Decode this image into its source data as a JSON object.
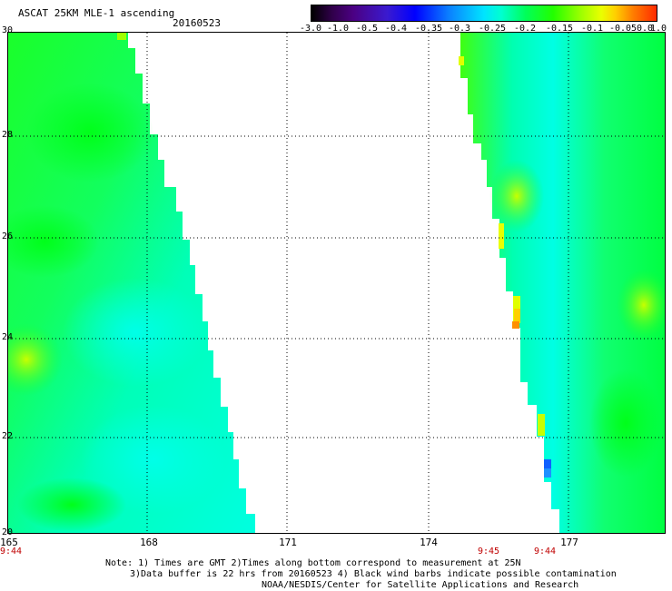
{
  "header": {
    "title": "ASCAT 25KM MLE-1 ascending",
    "date": "20160523"
  },
  "colorbar": {
    "labels": [
      "-3.0",
      "-1.0",
      "-0.5",
      "-0.4",
      "-0.35",
      "-0.3",
      "-0.25",
      "-0.2",
      "-0.15",
      "-0.1",
      "-0.05",
      "0.0",
      "1.0"
    ],
    "colors": [
      "#000000",
      "#4b0082",
      "#0000ff",
      "#00e4ff",
      "#22ff00",
      "#eaff00",
      "#ff8000",
      "#ff2a00"
    ]
  },
  "map": {
    "lat_labels": [
      "30",
      "28",
      "26",
      "24",
      "22",
      "20"
    ],
    "lon_labels": [
      "165",
      "168",
      "171",
      "174",
      "177"
    ],
    "time_labels": [
      {
        "text": "9:44",
        "lon": 165
      },
      {
        "text": "9:45",
        "lon": 175.1
      },
      {
        "text": "9:44",
        "lon": 176.7
      }
    ],
    "swath_colors": {
      "green": "#1aff2a",
      "cyan": "#00ffd2",
      "yellowgreen": "#a0ff00",
      "orange": "#ff9000",
      "blue": "#1060ff"
    }
  },
  "notes": {
    "line1": "Note: 1) Times are GMT 2)Times along bottom correspond to measurement at 25N",
    "line2": "3)Data buffer is 22 hrs from 20160523 4) Black wind barbs indicate possible contamination",
    "line3": "NOAA/NESDIS/Center for Satellite Applications and Research"
  }
}
